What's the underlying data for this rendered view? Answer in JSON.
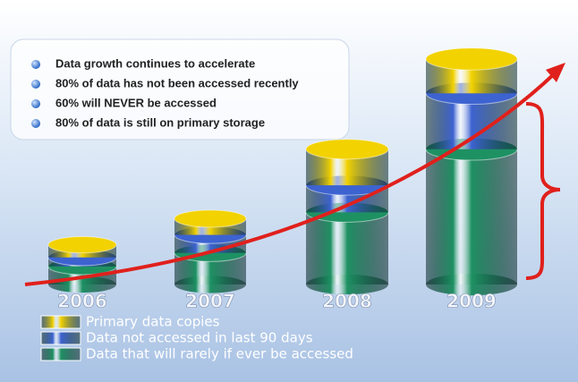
{
  "chart_data": {
    "type": "bar",
    "stacked": true,
    "annotations": [
      "Data growth continues to accelerate",
      "80% of data has not been accessed recently",
      "60% will NEVER be accessed",
      "80% of data is still on primary storage"
    ],
    "categories": [
      "2006",
      "2007",
      "2008",
      "2009"
    ],
    "series": [
      {
        "name": "Data that will rarely if ever be accessed",
        "color": "#1e9163",
        "values": [
          20,
          35,
          80,
          150
        ]
      },
      {
        "name": "Data not accessed in last 90 days",
        "color": "#3d63d1",
        "values": [
          10,
          20,
          30,
          62
        ]
      },
      {
        "name": "Primary data copies",
        "color": "#f2d200",
        "values": [
          14,
          18,
          40,
          38
        ]
      }
    ]
  }
}
